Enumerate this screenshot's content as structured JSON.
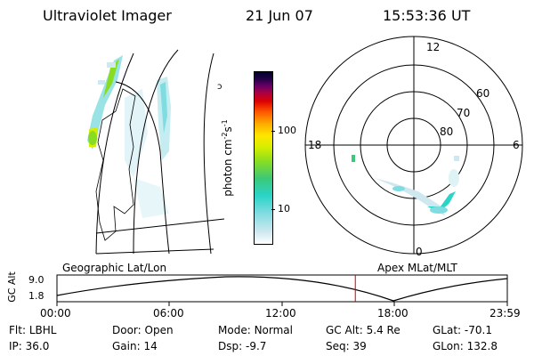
{
  "header": {
    "instrument": "Ultraviolet Imager",
    "date": "21 Jun 07",
    "time": "15:53:36 UT"
  },
  "colorbar": {
    "label": "photon cm",
    "label_sup1": "-2",
    "label_s": "s",
    "label_sup2": "-1",
    "ticks": [
      "100",
      "10"
    ],
    "colors": [
      "#ffffff",
      "#cfe8f0",
      "#7fdce0",
      "#2ad4c8",
      "#3cc878",
      "#88dd22",
      "#d4ee00",
      "#ffe600",
      "#ffaa00",
      "#ff5500",
      "#dd0000",
      "#aa0044",
      "#660066",
      "#220044",
      "#000033"
    ]
  },
  "polar": {
    "mlt_labels": {
      "top": "12",
      "left": "18",
      "right": "6",
      "bottom": "0"
    },
    "lat_labels": [
      "60",
      "70",
      "80"
    ]
  },
  "timeline": {
    "axis_label": "GC Alt",
    "y_ticks": [
      "9.0",
      "1.8"
    ],
    "left_caption": "Geographic Lat/Lon",
    "right_caption": "Apex MLat/MLT",
    "x_ticks": [
      "00:00",
      "06:00",
      "12:00",
      "18:00",
      "23:59"
    ],
    "current_marker_hours": 15.9
  },
  "status": {
    "flt_label": "Flt:",
    "flt_value": "LBHL",
    "ip_label": "IP:",
    "ip_value": "36.0",
    "door_label": "Door:",
    "door_value": "Open",
    "gain_label": "Gain:",
    "gain_value": "14",
    "mode_label": "Mode:",
    "mode_value": "Normal",
    "dsp_label": "Dsp:",
    "dsp_value": "-9.7",
    "gcalt_label": "GC Alt:",
    "gcalt_value": "5.4 Re",
    "seq_label": "Seq:",
    "seq_value": "39",
    "glat_label": "GLat:",
    "glat_value": "-70.1",
    "glon_label": "GLon:",
    "glon_value": "132.8"
  }
}
